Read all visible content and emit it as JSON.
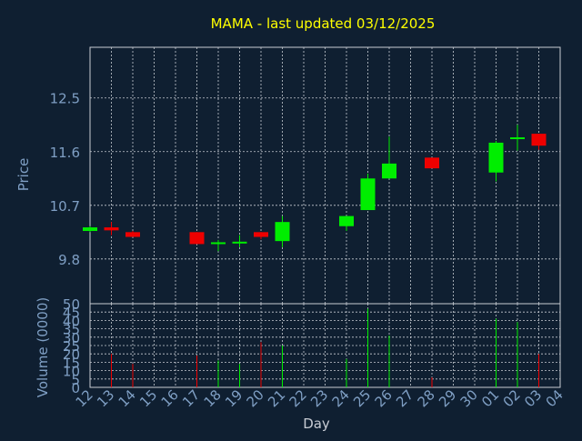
{
  "colors": {
    "background": "#0f1f31",
    "grid": "#c8ccd4",
    "label": "#7f9fc4",
    "title": "#ffff00",
    "up": "#00ee00",
    "down": "#ee0000"
  },
  "chart_data": {
    "type": "candlestick",
    "title": "MAMA - last updated 03/12/2025",
    "xlabel": "Day",
    "ylabel": "Price",
    "volume_label": "Volume (0000)",
    "grid": true,
    "price_ylim": [
      9.05,
      13.35
    ],
    "price_ticks": [
      "9.8",
      "10.7",
      "11.6",
      "12.5"
    ],
    "volume_ylim": [
      0,
      50
    ],
    "volume_ticks": [
      "0",
      "5",
      "10",
      "15",
      "20",
      "25",
      "30",
      "35",
      "40",
      "45",
      "50"
    ],
    "days": [
      "12",
      "13",
      "14",
      "15",
      "16",
      "17",
      "18",
      "19",
      "20",
      "21",
      "22",
      "23",
      "24",
      "25",
      "26",
      "27",
      "28",
      "29",
      "30",
      "01",
      "02",
      "03",
      "04"
    ],
    "candles": [
      {
        "day": "12",
        "open": 10.27,
        "close": 10.33,
        "high": 10.35,
        "low": 10.25,
        "volume": 0
      },
      {
        "day": "13",
        "open": 10.33,
        "close": 10.28,
        "high": 10.42,
        "low": 10.2,
        "volume": 20
      },
      {
        "day": "14",
        "open": 10.25,
        "close": 10.17,
        "high": 10.27,
        "low": 10.17,
        "volume": 14
      },
      {
        "day": "17",
        "open": 10.25,
        "close": 10.05,
        "high": 10.25,
        "low": 10.05,
        "volume": 19
      },
      {
        "day": "18",
        "open": 10.07,
        "close": 10.08,
        "high": 10.12,
        "low": 9.93,
        "volume": 16
      },
      {
        "day": "19",
        "open": 10.07,
        "close": 10.09,
        "high": 10.2,
        "low": 10.0,
        "volume": 14
      },
      {
        "day": "20",
        "open": 10.25,
        "close": 10.17,
        "high": 10.25,
        "low": 10.13,
        "volume": 27
      },
      {
        "day": "21",
        "open": 10.1,
        "close": 10.42,
        "high": 10.52,
        "low": 10.0,
        "volume": 25
      },
      {
        "day": "24",
        "open": 10.35,
        "close": 10.52,
        "high": 10.52,
        "low": 10.27,
        "volume": 17
      },
      {
        "day": "25",
        "open": 10.62,
        "close": 11.15,
        "high": 11.23,
        "low": 10.62,
        "volume": 47
      },
      {
        "day": "26",
        "open": 11.15,
        "close": 11.4,
        "high": 11.85,
        "low": 11.15,
        "volume": 31
      },
      {
        "day": "28",
        "open": 11.5,
        "close": 11.32,
        "high": 11.5,
        "low": 11.32,
        "volume": 6
      },
      {
        "day": "01",
        "open": 11.25,
        "close": 11.75,
        "high": 11.78,
        "low": 11.1,
        "volume": 41
      },
      {
        "day": "02",
        "open": 11.82,
        "close": 11.84,
        "high": 12.05,
        "low": 11.62,
        "volume": 39
      },
      {
        "day": "03",
        "open": 11.9,
        "close": 11.7,
        "high": 11.9,
        "low": 11.63,
        "volume": 20
      }
    ]
  }
}
